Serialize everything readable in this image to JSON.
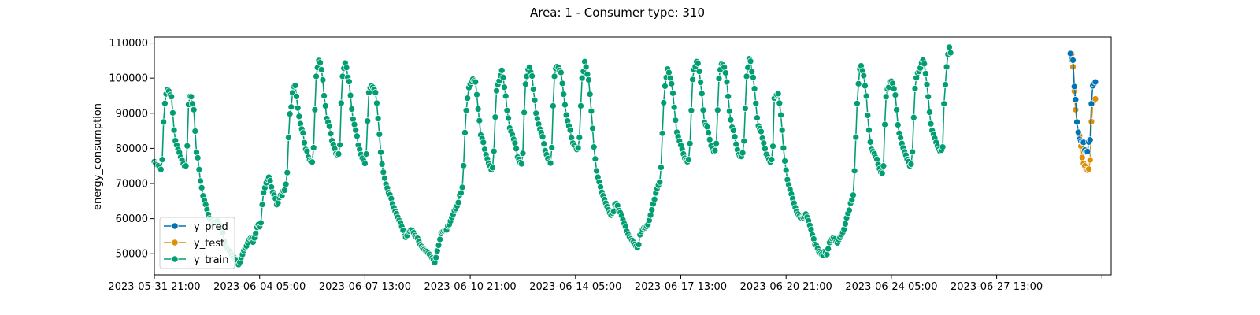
{
  "chart_data": {
    "type": "line",
    "title": "Area: 1 - Consumer type: 310",
    "xlabel": "",
    "ylabel": "energy_consumption",
    "x_unit": "hour",
    "x_start": "2023-05-31 21:00",
    "x_end": "2023-07-01 04:00",
    "x_tick_labels": [
      "2023-05-31 21:00",
      "2023-06-04 05:00",
      "2023-06-07 13:00",
      "2023-06-10 21:00",
      "2023-06-14 05:00",
      "2023-06-17 13:00",
      "2023-06-20 21:00",
      "2023-06-24 05:00",
      "2023-06-27 13:00",
      ""
    ],
    "y_ticks": [
      50000,
      60000,
      70000,
      80000,
      90000,
      100000,
      110000
    ],
    "y_tick_labels": [
      "50000",
      "60000",
      "70000",
      "80000",
      "90000",
      "100000",
      "110000"
    ],
    "ylim": [
      44000,
      111700
    ],
    "grid": false,
    "legend_position": "lower-left",
    "series": [
      {
        "name": "y_train",
        "color": "#029e73",
        "marker": "circle",
        "x_start": "2023-05-31 21:00",
        "x_step_hours": 1,
        "values": [
          76200,
          75700,
          75300,
          75000,
          74500,
          74000,
          76800,
          87500,
          92800,
          95500,
          96800,
          96300,
          95200,
          94700,
          90100,
          85200,
          82200,
          80900,
          79700,
          78800,
          77500,
          76700,
          75600,
          74900,
          75000,
          80700,
          92500,
          94800,
          94700,
          92700,
          91000,
          84900,
          78900,
          77300,
          74000,
          70700,
          68800,
          66500,
          65200,
          64000,
          62600,
          61200,
          60000,
          59300,
          58400,
          58900,
          59000,
          59300,
          59300,
          58600,
          58000,
          57300,
          56000,
          53600,
          52200,
          51700,
          51200,
          50800,
          50200,
          49600,
          49000,
          48800,
          48400,
          48100,
          46900,
          47600,
          48900,
          49800,
          50900,
          51600,
          52200,
          53100,
          54000,
          54400,
          54300,
          53300,
          54500,
          55800,
          57500,
          58300,
          57700,
          58800,
          64000,
          67400,
          68800,
          70200,
          71200,
          71800,
          70800,
          69000,
          67500,
          66700,
          65700,
          64000,
          64500,
          66000,
          66700,
          66500,
          67900,
          68100,
          69800,
          73100,
          83100,
          89800,
          91800,
          95800,
          97600,
          97900,
          94800,
          91500,
          89100,
          87000,
          85500,
          84400,
          81600,
          79700,
          79200,
          77500,
          76700,
          76300,
          76100,
          80200,
          91000,
          100500,
          103000,
          105000,
          104400,
          102400,
          99500,
          95000,
          92100,
          88500,
          87500,
          86300,
          84200,
          82200,
          81100,
          79900,
          78500,
          78200,
          78400,
          81000,
          92900,
          100500,
          102800,
          104300,
          103000,
          100200,
          99000,
          95100,
          91200,
          88300,
          86800,
          85200,
          83500,
          80900,
          79700,
          78300,
          77200,
          76500,
          75700,
          78400,
          87800,
          95900,
          97300,
          97800,
          97400,
          96800,
          95900,
          92900,
          88500,
          84000,
          78900,
          75500,
          73200,
          71500,
          69800,
          68700,
          67400,
          66800,
          65700,
          64200,
          63100,
          62100,
          61400,
          60400,
          59500,
          58800,
          57700,
          56700,
          55000,
          54700,
          55200,
          56200,
          56400,
          56800,
          56600,
          56000,
          55200,
          54700,
          54400,
          53500,
          52600,
          52100,
          51600,
          51200,
          50900,
          50600,
          50200,
          49800,
          49200,
          48800,
          48400,
          47500,
          48900,
          50800,
          52400,
          54100,
          55800,
          56300,
          56500,
          56700,
          56800,
          57900,
          58300,
          59300,
          60300,
          61200,
          62300,
          62800,
          63600,
          64600,
          66700,
          67300,
          68900,
          75100,
          84500,
          90800,
          94300,
          97300,
          98300,
          99000,
          99700,
          99200,
          98900,
          95300,
          91200,
          87900,
          83800,
          82800,
          81700,
          79700,
          78200,
          77000,
          75800,
          75000,
          73900,
          74500,
          79200,
          88900,
          96400,
          98200,
          99200,
          100700,
          102200,
          100200,
          97400,
          94900,
          90800,
          88600,
          85800,
          84800,
          83900,
          82600,
          81500,
          79900,
          77500,
          76900,
          76000,
          75600,
          78600,
          90200,
          98300,
          100500,
          102500,
          103100,
          101700,
          100600,
          96800,
          93700,
          90000,
          88400,
          86900,
          85500,
          84500,
          83300,
          81300,
          79300,
          78200,
          77100,
          76100,
          75800,
          80200,
          92100,
          100500,
          102700,
          103300,
          103000,
          102200,
          101600,
          98500,
          95400,
          92400,
          89500,
          87800,
          86400,
          85200,
          83000,
          81500,
          80800,
          80000,
          79700,
          80100,
          83100,
          92100,
          100000,
          101900,
          104700,
          103200,
          101100,
          99500,
          95400,
          90600,
          85700,
          80400,
          77000,
          73600,
          71800,
          70400,
          69000,
          67500,
          66500,
          65400,
          64400,
          63400,
          62500,
          61600,
          61000,
          61600,
          62000,
          64100,
          64300,
          63700,
          62300,
          61700,
          60800,
          59700,
          58600,
          57700,
          56400,
          55500,
          54800,
          54200,
          53800,
          53300,
          52700,
          52100,
          51700,
          52600,
          55400,
          56300,
          56900,
          57400,
          57400,
          57800,
          58300,
          59500,
          61000,
          62500,
          64200,
          65500,
          67300,
          68600,
          69500,
          70400,
          74600,
          84300,
          93000,
          97700,
          100200,
          102600,
          101600,
          100000,
          98400,
          95700,
          91700,
          88000,
          84600,
          83300,
          82100,
          80900,
          79800,
          78400,
          77200,
          76700,
          76200,
          76800,
          81400,
          90800,
          99600,
          102400,
          103300,
          104700,
          104200,
          101900,
          98800,
          95600,
          90900,
          87400,
          86600,
          86100,
          84500,
          82500,
          80700,
          79900,
          79100,
          79400,
          81400,
          90900,
          99900,
          102400,
          104000,
          103700,
          103100,
          101500,
          98900,
          94800,
          90600,
          88100,
          86000,
          85100,
          83300,
          81200,
          79600,
          78200,
          77700,
          77700,
          78700,
          82100,
          91400,
          100500,
          103000,
          105500,
          104800,
          101800,
          100200,
          97000,
          92800,
          88700,
          86400,
          85600,
          84800,
          82900,
          81500,
          79900,
          78300,
          77600,
          76900,
          76100,
          76800,
          80600,
          94300,
          95000,
          95300,
          95600,
          92900,
          89500,
          85200,
          80100,
          76400,
          73800,
          71100,
          69600,
          68300,
          67000,
          65700,
          64400,
          63100,
          62100,
          61300,
          60700,
          60200,
          60100,
          60300,
          60600,
          61300,
          60400,
          59400,
          58100,
          56900,
          55400,
          54200,
          52700,
          52300,
          51500,
          50600,
          50100,
          49800,
          49600,
          50600,
          50400,
          49800,
          51400,
          53200,
          53800,
          54300,
          54600,
          54200,
          53400,
          53100,
          54000,
          54600,
          55400,
          56100,
          57000,
          58500,
          60200,
          61500,
          62400,
          64400,
          65300,
          66700,
          73600,
          83200,
          92800,
          98400,
          102600,
          103500,
          102100,
          100700,
          97800,
          94900,
          89400,
          85200,
          81800,
          79700,
          79100,
          78500,
          77500,
          76900,
          75400,
          74200,
          73200,
          72900,
          75000,
          86800,
          94700,
          96900,
          97400,
          99000,
          99100,
          98500,
          97000,
          95200,
          91000,
          86700,
          84300,
          83000,
          81400,
          80100,
          79000,
          78100,
          76900,
          76200,
          75000,
          75500,
          79000,
          88800,
          97000,
          100100,
          101500,
          101900,
          102900,
          104300,
          105100,
          104100,
          101300,
          98200,
          94700,
          90300,
          87000,
          85100,
          84000,
          82900,
          81700,
          80700,
          79700,
          79200,
          79500,
          80400,
          92700,
          98100,
          103200,
          106800,
          108800,
          107200
        ]
      },
      {
        "name": "y_test",
        "color": "#de8f05",
        "marker": "circle",
        "x_start": "2023-06-29 21:00",
        "x_step_hours": 1,
        "values": [
          107200,
          106900,
          103200,
          96300,
          91000,
          87500,
          84400,
          83600,
          80600,
          77400,
          75700,
          75000,
          74000,
          73800,
          74100,
          76700,
          87600,
          92700,
          93600,
          94100
        ]
      },
      {
        "name": "y_pred",
        "color": "#0173b2",
        "marker": "circle",
        "x_start": "2023-06-29 21:00",
        "x_step_hours": 1,
        "values": [
          107000,
          105200,
          105100,
          97600,
          93900,
          87500,
          84600,
          82600,
          82100,
          81800,
          81700,
          79500,
          79000,
          79100,
          81800,
          82400,
          92700,
          97800,
          98400,
          98900
        ]
      }
    ]
  }
}
